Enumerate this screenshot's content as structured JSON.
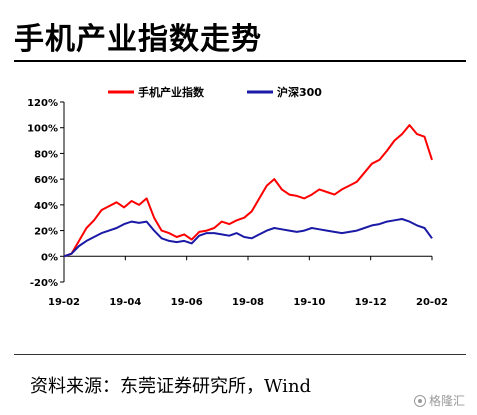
{
  "title": "手机产业指数走势",
  "source": "资料来源：东莞证券研究所，Wind",
  "watermark": "格隆汇",
  "colors": {
    "series1": "#ff0000",
    "series2": "#1a1aa6",
    "text": "#000000"
  },
  "chart_data": {
    "type": "line",
    "title": "",
    "xlabel": "",
    "ylabel": "",
    "ylim": [
      -0.2,
      1.2
    ],
    "yticks": [
      -0.2,
      0,
      0.2,
      0.4,
      0.6,
      0.8,
      1.0,
      1.2
    ],
    "ytick_labels": [
      "-20%",
      "0%",
      "20%",
      "40%",
      "60%",
      "80%",
      "100%",
      "120%"
    ],
    "xticks": [
      "19-02",
      "19-04",
      "19-06",
      "19-08",
      "19-10",
      "19-12",
      "20-02"
    ],
    "grid": false,
    "legend_position": "top",
    "series": [
      {
        "name": "手机产业指数",
        "color": "#ff0000",
        "points": [
          [
            "19-02",
            0.0
          ],
          [
            "19-02",
            0.02
          ],
          [
            "19-02",
            0.12
          ],
          [
            "19-02",
            0.22
          ],
          [
            "19-03",
            0.28
          ],
          [
            "19-03",
            0.36
          ],
          [
            "19-03",
            0.39
          ],
          [
            "19-03",
            0.42
          ],
          [
            "19-04",
            0.38
          ],
          [
            "19-04",
            0.43
          ],
          [
            "19-04",
            0.4
          ],
          [
            "19-04",
            0.45
          ],
          [
            "19-05",
            0.3
          ],
          [
            "19-05",
            0.2
          ],
          [
            "19-05",
            0.18
          ],
          [
            "19-05",
            0.15
          ],
          [
            "19-06",
            0.17
          ],
          [
            "19-06",
            0.13
          ],
          [
            "19-06",
            0.19
          ],
          [
            "19-06",
            0.2
          ],
          [
            "19-07",
            0.22
          ],
          [
            "19-07",
            0.27
          ],
          [
            "19-07",
            0.25
          ],
          [
            "19-07",
            0.28
          ],
          [
            "19-08",
            0.3
          ],
          [
            "19-08",
            0.35
          ],
          [
            "19-08",
            0.45
          ],
          [
            "19-08",
            0.55
          ],
          [
            "19-09",
            0.6
          ],
          [
            "19-09",
            0.52
          ],
          [
            "19-09",
            0.48
          ],
          [
            "19-09",
            0.47
          ],
          [
            "19-10",
            0.45
          ],
          [
            "19-10",
            0.48
          ],
          [
            "19-10",
            0.52
          ],
          [
            "19-10",
            0.5
          ],
          [
            "19-11",
            0.48
          ],
          [
            "19-11",
            0.52
          ],
          [
            "19-11",
            0.55
          ],
          [
            "19-11",
            0.58
          ],
          [
            "19-12",
            0.65
          ],
          [
            "19-12",
            0.72
          ],
          [
            "19-12",
            0.75
          ],
          [
            "19-12",
            0.82
          ],
          [
            "20-01",
            0.9
          ],
          [
            "20-01",
            0.95
          ],
          [
            "20-01",
            1.02
          ],
          [
            "20-01",
            0.95
          ],
          [
            "20-02",
            0.93
          ],
          [
            "20-02",
            0.75
          ]
        ]
      },
      {
        "name": "沪深300",
        "color": "#1a1aa6",
        "points": [
          [
            "19-02",
            0.0
          ],
          [
            "19-02",
            0.02
          ],
          [
            "19-02",
            0.08
          ],
          [
            "19-02",
            0.12
          ],
          [
            "19-03",
            0.15
          ],
          [
            "19-03",
            0.18
          ],
          [
            "19-03",
            0.2
          ],
          [
            "19-03",
            0.22
          ],
          [
            "19-04",
            0.25
          ],
          [
            "19-04",
            0.27
          ],
          [
            "19-04",
            0.26
          ],
          [
            "19-04",
            0.27
          ],
          [
            "19-05",
            0.2
          ],
          [
            "19-05",
            0.14
          ],
          [
            "19-05",
            0.12
          ],
          [
            "19-05",
            0.11
          ],
          [
            "19-06",
            0.12
          ],
          [
            "19-06",
            0.1
          ],
          [
            "19-06",
            0.16
          ],
          [
            "19-06",
            0.18
          ],
          [
            "19-07",
            0.18
          ],
          [
            "19-07",
            0.17
          ],
          [
            "19-07",
            0.16
          ],
          [
            "19-07",
            0.18
          ],
          [
            "19-08",
            0.15
          ],
          [
            "19-08",
            0.14
          ],
          [
            "19-08",
            0.17
          ],
          [
            "19-08",
            0.2
          ],
          [
            "19-09",
            0.22
          ],
          [
            "19-09",
            0.21
          ],
          [
            "19-09",
            0.2
          ],
          [
            "19-09",
            0.19
          ],
          [
            "19-10",
            0.2
          ],
          [
            "19-10",
            0.22
          ],
          [
            "19-10",
            0.21
          ],
          [
            "19-10",
            0.2
          ],
          [
            "19-11",
            0.19
          ],
          [
            "19-11",
            0.18
          ],
          [
            "19-11",
            0.19
          ],
          [
            "19-11",
            0.2
          ],
          [
            "19-12",
            0.22
          ],
          [
            "19-12",
            0.24
          ],
          [
            "19-12",
            0.25
          ],
          [
            "19-12",
            0.27
          ],
          [
            "20-01",
            0.28
          ],
          [
            "20-01",
            0.29
          ],
          [
            "20-01",
            0.27
          ],
          [
            "20-01",
            0.24
          ],
          [
            "20-02",
            0.22
          ],
          [
            "20-02",
            0.14
          ]
        ]
      }
    ]
  }
}
